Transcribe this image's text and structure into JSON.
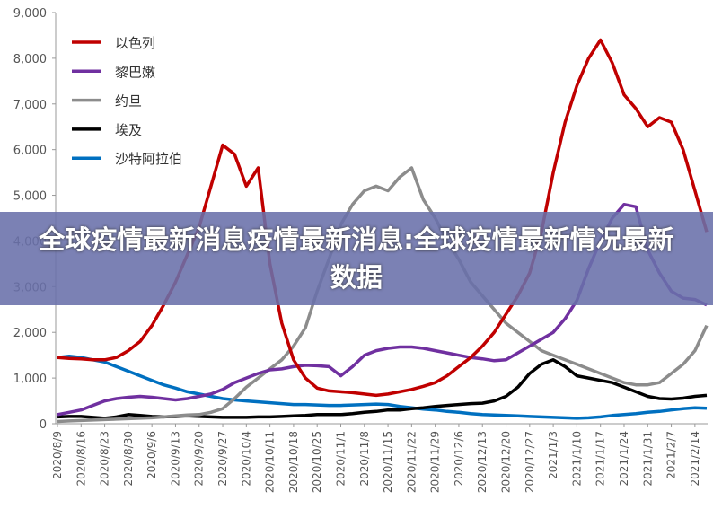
{
  "chart_data": {
    "type": "line",
    "categories": [
      "2020/8/9",
      null,
      "2020/8/16",
      null,
      "2020/8/23",
      null,
      "2020/8/30",
      null,
      "2020/9/6",
      null,
      "2020/9/13",
      null,
      "2020/9/20",
      null,
      "2020/9/27",
      null,
      "2020/10/4",
      null,
      "2020/10/11",
      null,
      "2020/10/18",
      null,
      "2020/10/25",
      null,
      "2020/11/1",
      null,
      "2020/11/8",
      null,
      "2020/11/15",
      null,
      "2020/11/22",
      null,
      "2020/11/29",
      null,
      "2020/12/6",
      null,
      "2020/12/13",
      null,
      "2020/12/20",
      null,
      "2020/12/27",
      null,
      "2021/1/3",
      null,
      "2021/1/10",
      null,
      "2021/1/17",
      null,
      "2021/1/24",
      null,
      "2021/1/31",
      null,
      "2021/2/7",
      null,
      "2021/2/14",
      null
    ],
    "series": [
      {
        "name": "以色列",
        "color": "#c00000",
        "values": [
          1450,
          1430,
          1420,
          1400,
          1400,
          1450,
          1600,
          1800,
          2150,
          2600,
          3100,
          3700,
          4300,
          5200,
          6100,
          5900,
          5200,
          5600,
          3500,
          2200,
          1400,
          1000,
          780,
          720,
          700,
          680,
          650,
          620,
          650,
          700,
          750,
          820,
          900,
          1050,
          1250,
          1450,
          1700,
          2000,
          2400,
          2800,
          3300,
          4200,
          5500,
          6600,
          7400,
          8000,
          8400,
          7900,
          7200,
          6900,
          6500,
          6700,
          6600,
          6000,
          5100,
          4200
        ]
      },
      {
        "name": "黎巴嫩",
        "color": "#7030a0",
        "values": [
          200,
          250,
          300,
          400,
          500,
          550,
          580,
          600,
          580,
          550,
          520,
          550,
          600,
          650,
          750,
          900,
          1000,
          1100,
          1180,
          1200,
          1250,
          1280,
          1270,
          1250,
          1050,
          1250,
          1500,
          1600,
          1650,
          1680,
          1680,
          1650,
          1600,
          1550,
          1500,
          1450,
          1420,
          1380,
          1400,
          1550,
          1700,
          1850,
          2000,
          2300,
          2700,
          3400,
          4000,
          4500,
          4800,
          4750,
          3800,
          3300,
          2900,
          2750,
          2720,
          2600
        ]
      },
      {
        "name": "约旦",
        "color": "#8c8c8c",
        "values": [
          50,
          60,
          70,
          80,
          90,
          100,
          110,
          120,
          130,
          150,
          170,
          190,
          200,
          250,
          330,
          550,
          800,
          1000,
          1200,
          1400,
          1700,
          2100,
          2900,
          3600,
          4360,
          4800,
          5100,
          5200,
          5100,
          5400,
          5600,
          4900,
          4500,
          4000,
          3600,
          3100,
          2800,
          2500,
          2200,
          2000,
          1800,
          1600,
          1500,
          1400,
          1300,
          1200,
          1100,
          1000,
          900,
          850,
          850,
          900,
          1100,
          1300,
          1600,
          2150
        ]
      },
      {
        "name": "埃及",
        "color": "#000000",
        "values": [
          150,
          160,
          160,
          140,
          120,
          150,
          200,
          180,
          160,
          150,
          160,
          170,
          160,
          150,
          140,
          140,
          140,
          150,
          150,
          160,
          170,
          180,
          200,
          200,
          200,
          220,
          250,
          270,
          300,
          300,
          330,
          350,
          380,
          400,
          420,
          440,
          450,
          500,
          600,
          800,
          1100,
          1300,
          1400,
          1250,
          1050,
          1000,
          950,
          900,
          800,
          700,
          600,
          550,
          540,
          560,
          600,
          620
        ]
      },
      {
        "name": "沙特阿拉伯",
        "color": "#0070c0",
        "values": [
          1450,
          1480,
          1450,
          1400,
          1350,
          1250,
          1150,
          1050,
          950,
          850,
          780,
          700,
          650,
          600,
          550,
          520,
          500,
          480,
          460,
          440,
          420,
          420,
          410,
          400,
          400,
          410,
          420,
          430,
          420,
          380,
          350,
          320,
          300,
          270,
          250,
          220,
          200,
          190,
          180,
          170,
          160,
          150,
          140,
          130,
          120,
          130,
          150,
          180,
          200,
          220,
          250,
          270,
          300,
          330,
          350,
          340
        ]
      }
    ],
    "ylim": [
      0,
      9000
    ],
    "yticks": [
      0,
      {
        "value": 1000,
        "label": "1,000"
      },
      {
        "value": 2000,
        "label": "2,000"
      },
      {
        "value": 3000,
        "label": "3,000"
      },
      {
        "value": 4000,
        "label": "4,000"
      },
      {
        "value": 5000,
        "label": "5,000"
      },
      {
        "value": 6000,
        "label": "6,000"
      },
      {
        "value": 7000,
        "label": "7,000"
      },
      {
        "value": 8000,
        "label": "8,000"
      },
      {
        "value": 9000,
        "label": "9,000"
      }
    ],
    "grid": false,
    "legend": "top-left"
  },
  "banner": "全球疫情最新消息疫情最新消息:全球疫情最新情况最新数据"
}
